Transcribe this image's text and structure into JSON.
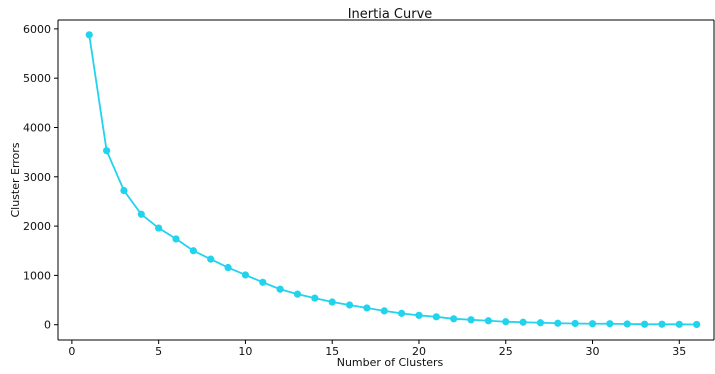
{
  "chart_data": {
    "type": "line",
    "title": "Inertia Curve",
    "xlabel": "Number of Clusters",
    "ylabel": "Cluster Errors",
    "xlim": [
      -0.8,
      37
    ],
    "ylim": [
      -310,
      6180
    ],
    "xticks": [
      0,
      5,
      10,
      15,
      20,
      25,
      30,
      35
    ],
    "yticks": [
      0,
      1000,
      2000,
      3000,
      4000,
      5000,
      6000
    ],
    "grid": false,
    "series": [
      {
        "color": "#22d3ee",
        "marker": "circle",
        "x": [
          1,
          2,
          3,
          4,
          5,
          6,
          7,
          8,
          9,
          10,
          11,
          12,
          13,
          14,
          15,
          16,
          17,
          18,
          19,
          20,
          21,
          22,
          23,
          24,
          25,
          26,
          27,
          28,
          29,
          30,
          31,
          32,
          33,
          34,
          35,
          36
        ],
        "values": [
          5880,
          3530,
          2720,
          2240,
          1960,
          1740,
          1500,
          1330,
          1160,
          1010,
          860,
          720,
          620,
          540,
          460,
          400,
          340,
          280,
          230,
          190,
          160,
          120,
          100,
          80,
          60,
          50,
          40,
          30,
          25,
          20,
          20,
          15,
          10,
          10,
          8,
          5
        ]
      }
    ]
  }
}
